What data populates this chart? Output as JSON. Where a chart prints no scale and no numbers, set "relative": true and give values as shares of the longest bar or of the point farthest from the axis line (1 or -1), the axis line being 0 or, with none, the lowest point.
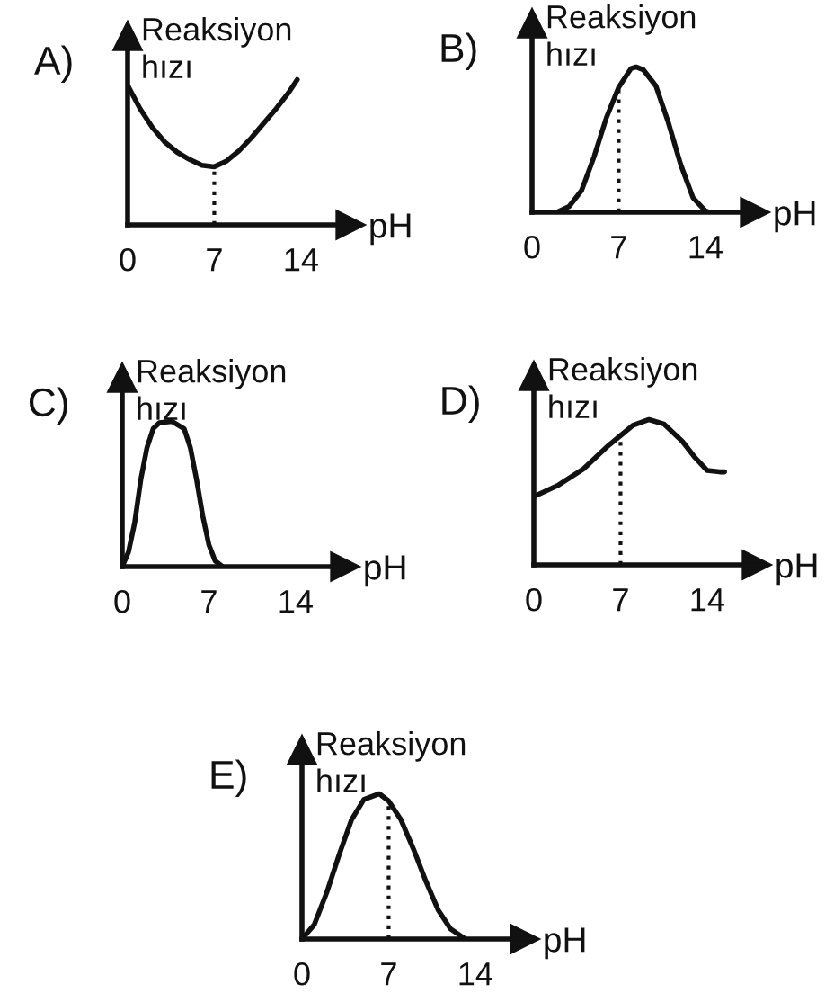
{
  "chart_data": [
    {
      "type": "line",
      "title": "A)",
      "ylabel": "Reaksiyon\nhızı",
      "xlabel": "pH",
      "relative": true,
      "xlim": [
        0,
        18
      ],
      "xticks": [
        0,
        7,
        14
      ],
      "grid": false,
      "legend": false,
      "marker": "none",
      "line_style": "solid",
      "x": [
        0,
        1,
        2,
        3,
        4,
        5,
        6,
        7,
        8,
        9,
        10,
        11,
        12,
        13,
        13.7
      ],
      "series": [
        {
          "color": "#111111",
          "values": [
            0.96,
            0.8,
            0.67,
            0.57,
            0.5,
            0.45,
            0.41,
            0.4,
            0.44,
            0.51,
            0.6,
            0.7,
            0.8,
            0.91,
            1
          ]
        }
      ],
      "ref_lines": [
        {
          "axis": "x",
          "value": 7,
          "line_style": "dotted",
          "color": "#111111"
        }
      ]
    },
    {
      "type": "line",
      "title": "B)",
      "ylabel": "Reaksiyon\nhızı",
      "xlabel": "pH",
      "relative": true,
      "xlim": [
        0,
        18
      ],
      "xticks": [
        0,
        7,
        14
      ],
      "grid": false,
      "legend": false,
      "marker": "none",
      "line_style": "solid",
      "x": [
        2,
        3,
        4,
        5,
        6,
        7,
        8,
        8.4,
        9,
        10,
        11,
        12,
        13,
        14,
        14.3
      ],
      "series": [
        {
          "color": "#111111",
          "values": [
            0,
            0.04,
            0.15,
            0.38,
            0.65,
            0.86,
            0.99,
            1,
            0.98,
            0.87,
            0.62,
            0.33,
            0.1,
            0.01,
            0
          ]
        }
      ],
      "ref_lines": [
        {
          "axis": "x",
          "value": 7,
          "line_style": "dotted",
          "color": "#111111"
        }
      ]
    },
    {
      "type": "line",
      "title": "C)",
      "ylabel": "Reaksiyon\nhızı",
      "xlabel": "pH",
      "relative": true,
      "xlim": [
        0,
        18
      ],
      "xticks": [
        0,
        7,
        14
      ],
      "grid": false,
      "legend": false,
      "marker": "none",
      "line_style": "solid",
      "x": [
        0,
        0.5,
        1,
        1.5,
        2,
        2.5,
        3,
        4,
        5,
        5.5,
        6,
        6.5,
        7,
        7.5,
        8.1
      ],
      "series": [
        {
          "color": "#111111",
          "values": [
            0,
            0.1,
            0.3,
            0.6,
            0.82,
            0.95,
            0.99,
            1,
            0.95,
            0.82,
            0.6,
            0.35,
            0.15,
            0.04,
            0
          ]
        }
      ]
    },
    {
      "type": "line",
      "title": "D)",
      "ylabel": "Reaksiyon\nhızı",
      "xlabel": "pH",
      "relative": true,
      "xlim": [
        0,
        18
      ],
      "xticks": [
        0,
        7,
        14
      ],
      "grid": false,
      "legend": false,
      "marker": "none",
      "line_style": "solid",
      "x": [
        0,
        2,
        4,
        6,
        7,
        8,
        9.3,
        10.5,
        12,
        13,
        14,
        15,
        15.4
      ],
      "series": [
        {
          "color": "#111111",
          "values": [
            0.47,
            0.55,
            0.66,
            0.82,
            0.89,
            0.96,
            1,
            0.97,
            0.85,
            0.74,
            0.65,
            0.64,
            0.64
          ]
        }
      ],
      "ref_lines": [
        {
          "axis": "x",
          "value": 7,
          "line_style": "dotted",
          "color": "#111111"
        }
      ]
    },
    {
      "type": "line",
      "title": "E)",
      "ylabel": "Reaksiyon\nhızı",
      "xlabel": "pH",
      "relative": true,
      "xlim": [
        0,
        18
      ],
      "xticks": [
        0,
        7,
        14
      ],
      "grid": false,
      "legend": false,
      "marker": "none",
      "line_style": "solid",
      "x": [
        0,
        1,
        2,
        3,
        4,
        5,
        6.25,
        7,
        8,
        9,
        10,
        11,
        12,
        13.2
      ],
      "series": [
        {
          "color": "#111111",
          "values": [
            0,
            0.1,
            0.32,
            0.58,
            0.82,
            0.96,
            1,
            0.95,
            0.82,
            0.62,
            0.4,
            0.2,
            0.07,
            0
          ]
        }
      ],
      "ref_lines": [
        {
          "axis": "x",
          "value": 7,
          "line_style": "dotted",
          "color": "#111111"
        }
      ]
    }
  ]
}
